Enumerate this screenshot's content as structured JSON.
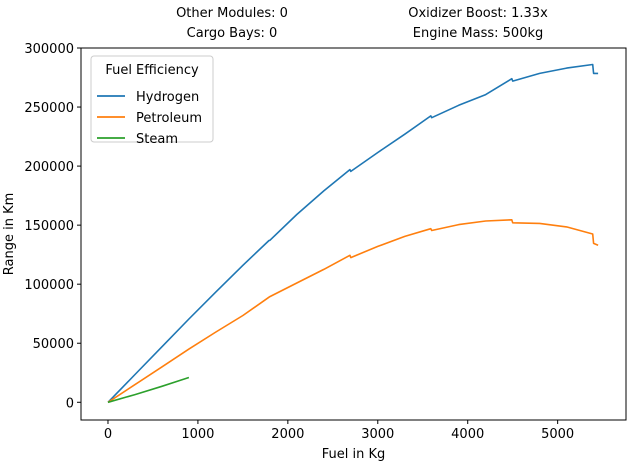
{
  "header": {
    "other_modules": "Other Modules: 0",
    "cargo_bays": "Cargo Bays: 0",
    "oxidizer_boost": "Oxidizer Boost: 1.33x",
    "engine_mass": "Engine Mass: 500kg"
  },
  "chart_data": {
    "type": "line",
    "xlabel": "Fuel in Kg",
    "ylabel": "Range in Km",
    "xlim": [
      -300,
      5760
    ],
    "ylim": [
      -15000,
      300000
    ],
    "xticks": [
      0,
      1000,
      2000,
      3000,
      4000,
      5000
    ],
    "yticks": [
      0,
      50000,
      100000,
      150000,
      200000,
      250000,
      300000
    ],
    "grid": false,
    "legend": {
      "title": "Fuel Efficiency",
      "placement": "top-left"
    },
    "series": [
      {
        "name": "Hydrogen",
        "color": "#1f77b4",
        "points": [
          [
            0,
            0
          ],
          [
            300,
            23500
          ],
          [
            600,
            47000
          ],
          [
            900,
            70500
          ],
          [
            1200,
            93500
          ],
          [
            1500,
            116000
          ],
          [
            1790,
            137000
          ],
          [
            1800,
            137200
          ],
          [
            2100,
            159000
          ],
          [
            2400,
            179000
          ],
          [
            2690,
            197000
          ],
          [
            2700,
            195500
          ],
          [
            3000,
            211500
          ],
          [
            3300,
            227000
          ],
          [
            3590,
            242500
          ],
          [
            3600,
            241000
          ],
          [
            3900,
            251500
          ],
          [
            4200,
            260500
          ],
          [
            4490,
            274000
          ],
          [
            4500,
            272000
          ],
          [
            4800,
            278500
          ],
          [
            5100,
            283000
          ],
          [
            5390,
            286000
          ],
          [
            5400,
            278500
          ],
          [
            5450,
            278500
          ]
        ]
      },
      {
        "name": "Petroleum",
        "color": "#ff7f0e",
        "points": [
          [
            0,
            0
          ],
          [
            300,
            15000
          ],
          [
            600,
            30000
          ],
          [
            900,
            45000
          ],
          [
            1200,
            59500
          ],
          [
            1500,
            73500
          ],
          [
            1790,
            89000
          ],
          [
            1800,
            89500
          ],
          [
            2100,
            101000
          ],
          [
            2400,
            112500
          ],
          [
            2690,
            124500
          ],
          [
            2700,
            122500
          ],
          [
            3000,
            132000
          ],
          [
            3300,
            140500
          ],
          [
            3590,
            147000
          ],
          [
            3600,
            145500
          ],
          [
            3900,
            150500
          ],
          [
            4200,
            153500
          ],
          [
            4490,
            154500
          ],
          [
            4500,
            152000
          ],
          [
            4800,
            151500
          ],
          [
            5100,
            148500
          ],
          [
            5390,
            142500
          ],
          [
            5400,
            134500
          ],
          [
            5450,
            133000
          ]
        ]
      },
      {
        "name": "Steam",
        "color": "#2ca02c",
        "points": [
          [
            0,
            0
          ],
          [
            300,
            6500
          ],
          [
            600,
            13500
          ],
          [
            900,
            21000
          ]
        ]
      }
    ]
  }
}
